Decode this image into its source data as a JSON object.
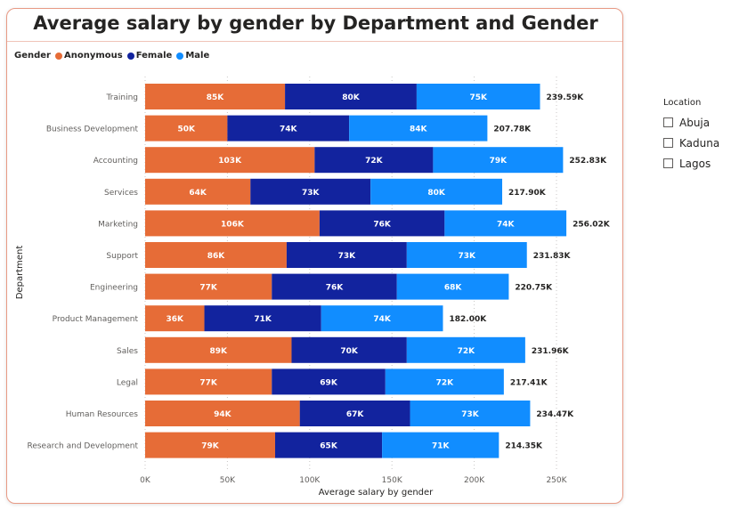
{
  "visual": {
    "title": "Average salary by gender by Department and Gender"
  },
  "colors": {
    "Anonymous": "#e66c37",
    "Female": "#12239e",
    "Male": "#118dff"
  },
  "chart_data": {
    "type": "bar",
    "orientation": "horizontal",
    "stacked": true,
    "title": "Average salary by gender by Department and Gender",
    "xlabel": "Average salary by gender",
    "ylabel": "Department",
    "legend_title": "Gender",
    "legend_position": "top-left",
    "xlim": [
      0,
      250000
    ],
    "xticks": [
      0,
      50000,
      100000,
      150000,
      200000,
      250000
    ],
    "xtick_labels": [
      "0K",
      "50K",
      "100K",
      "150K",
      "200K",
      "250K"
    ],
    "grid": "vertical-dotted",
    "categories": [
      "Training",
      "Business Development",
      "Accounting",
      "Services",
      "Marketing",
      "Support",
      "Engineering",
      "Product Management",
      "Sales",
      "Legal",
      "Human Resources",
      "Research and Development"
    ],
    "series": [
      {
        "name": "Anonymous",
        "values": [
          85000,
          50000,
          103000,
          64000,
          106000,
          86000,
          77000,
          36000,
          89000,
          77000,
          94000,
          79000
        ],
        "labels": [
          "85K",
          "50K",
          "103K",
          "64K",
          "106K",
          "86K",
          "77K",
          "36K",
          "89K",
          "77K",
          "94K",
          "79K"
        ]
      },
      {
        "name": "Female",
        "values": [
          80000,
          74000,
          72000,
          73000,
          76000,
          73000,
          76000,
          71000,
          70000,
          69000,
          67000,
          65000
        ],
        "labels": [
          "80K",
          "74K",
          "72K",
          "73K",
          "76K",
          "73K",
          "76K",
          "71K",
          "70K",
          "69K",
          "67K",
          "65K"
        ]
      },
      {
        "name": "Male",
        "values": [
          75000,
          84000,
          79000,
          80000,
          74000,
          73000,
          68000,
          74000,
          72000,
          72000,
          73000,
          71000
        ],
        "labels": [
          "75K",
          "84K",
          "79K",
          "80K",
          "74K",
          "73K",
          "68K",
          "74K",
          "72K",
          "72K",
          "73K",
          "71K"
        ]
      }
    ],
    "totals": [
      239590,
      207780,
      252830,
      217900,
      256020,
      231830,
      220750,
      182000,
      231960,
      217410,
      234470,
      214350
    ],
    "total_labels": [
      "239.59K",
      "207.78K",
      "252.83K",
      "217.90K",
      "256.02K",
      "231.83K",
      "220.75K",
      "182.00K",
      "231.96K",
      "217.41K",
      "234.47K",
      "214.35K"
    ]
  },
  "slicer": {
    "title": "Location",
    "options": [
      "Abuja",
      "Kaduna",
      "Lagos"
    ]
  }
}
